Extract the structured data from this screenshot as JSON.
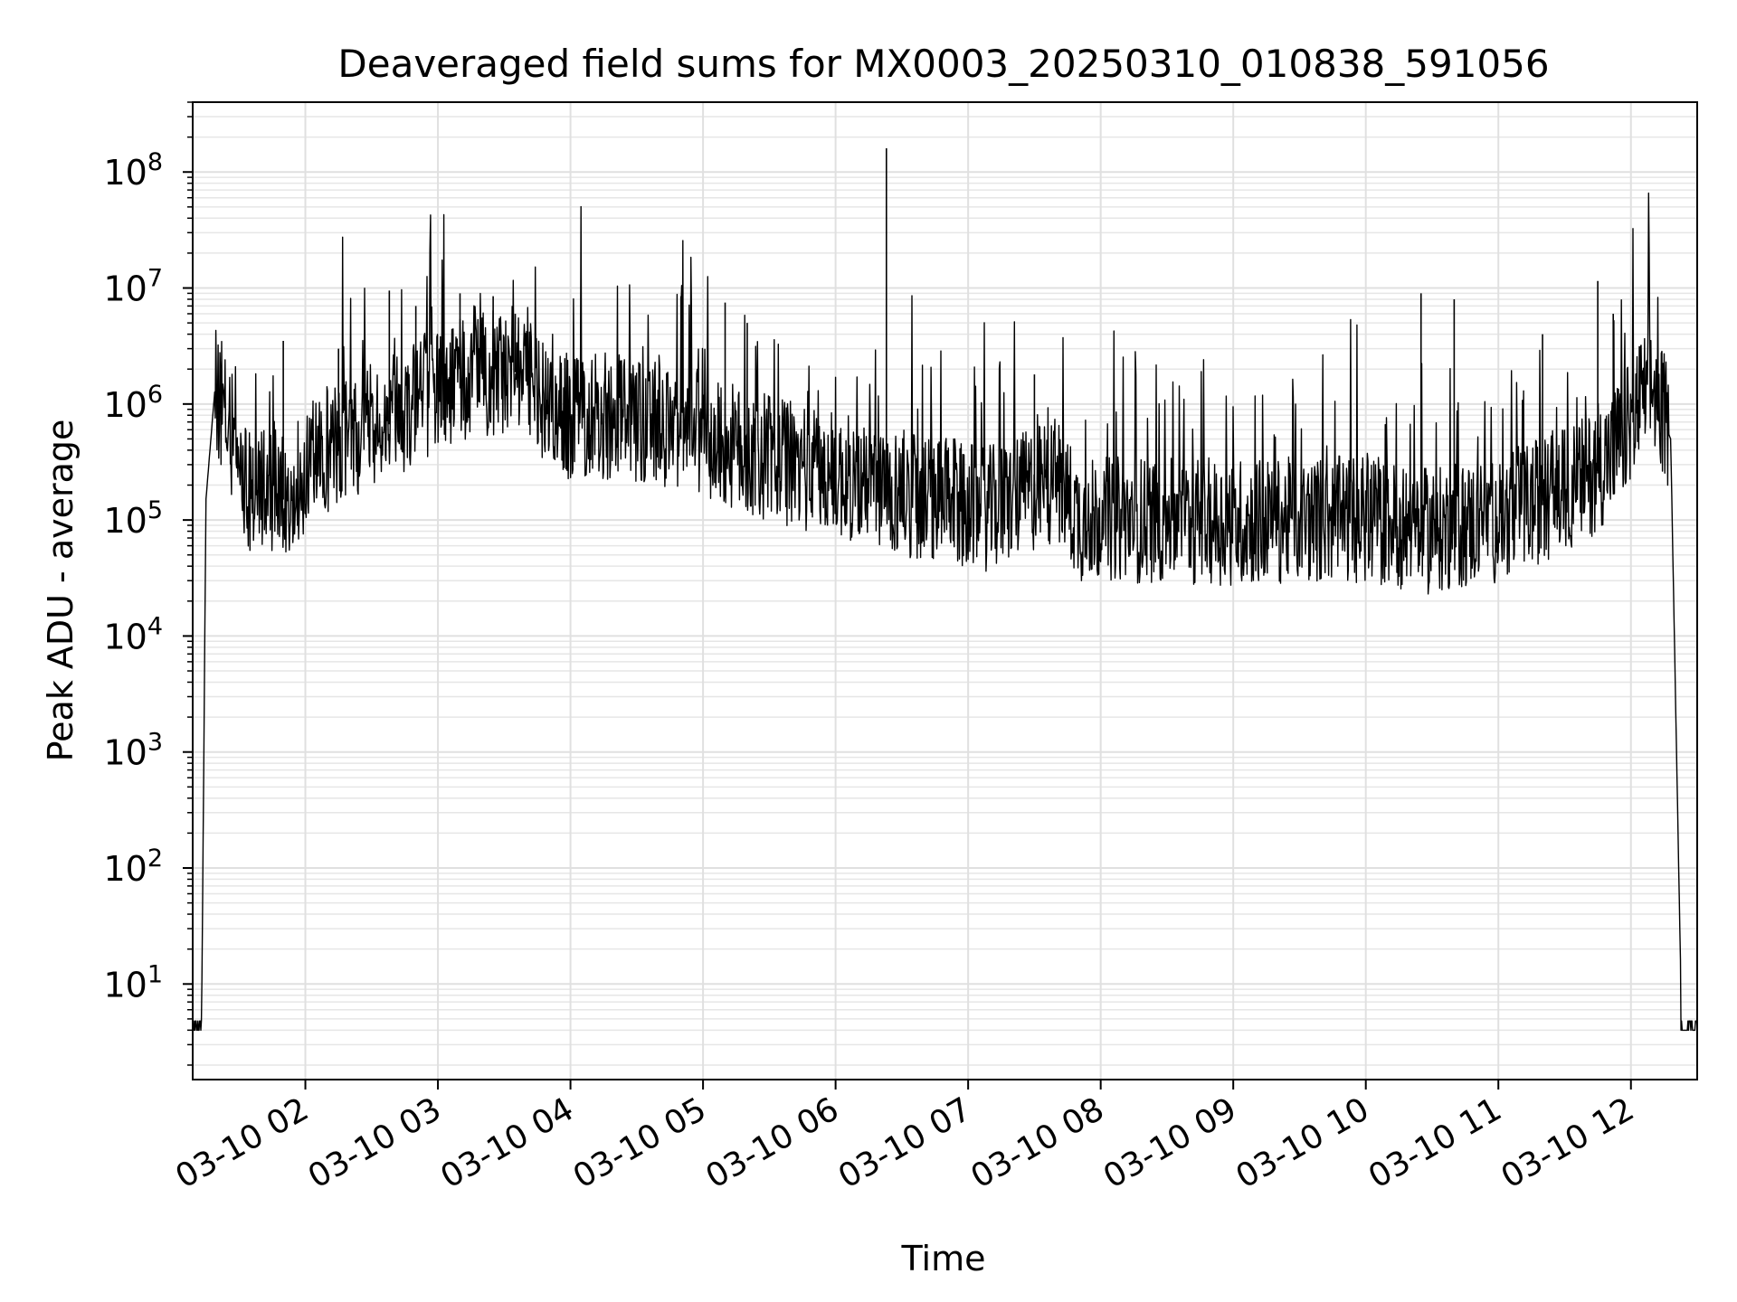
{
  "chart_data": {
    "type": "line",
    "title": "Deaveraged field sums for MX0003_20250310_010838_591056",
    "xlabel": "Time",
    "ylabel": "Peak ADU - average",
    "y_scale": "log",
    "ylim": [
      1.5,
      400000000
    ],
    "xlim": [
      "2025-03-10 01:09",
      "2025-03-10 12:30"
    ],
    "grid": true,
    "legend": "none",
    "line_color": "#000000",
    "x_ticks": [
      "03-10 02",
      "03-10 03",
      "03-10 04",
      "03-10 05",
      "03-10 06",
      "03-10 07",
      "03-10 08",
      "03-10 09",
      "03-10 10",
      "03-10 11",
      "03-10 12"
    ],
    "y_ticks": [
      {
        "base": "10",
        "exp": "1"
      },
      {
        "base": "10",
        "exp": "2"
      },
      {
        "base": "10",
        "exp": "3"
      },
      {
        "base": "10",
        "exp": "4"
      },
      {
        "base": "10",
        "exp": "5"
      },
      {
        "base": "10",
        "exp": "6"
      },
      {
        "base": "10",
        "exp": "7"
      },
      {
        "base": "10",
        "exp": "8"
      }
    ],
    "series": [
      {
        "baseline": [
          [
            "2025-03-10 01:09",
            4
          ],
          [
            "2025-03-10 01:13",
            4
          ],
          [
            "2025-03-10 01:15",
            150000
          ],
          [
            "2025-03-10 01:19",
            1300000
          ],
          [
            "2025-03-10 01:25",
            600000
          ],
          [
            "2025-03-10 01:35",
            150000
          ],
          [
            "2025-03-10 01:50",
            150000
          ],
          [
            "2025-03-10 02:10",
            350000
          ],
          [
            "2025-03-10 02:40",
            700000
          ],
          [
            "2025-03-10 03:00",
            1200000
          ],
          [
            "2025-03-10 03:40",
            2000000
          ],
          [
            "2025-03-10 03:50",
            700000
          ],
          [
            "2025-03-10 04:20",
            700000
          ],
          [
            "2025-03-10 04:50",
            500000
          ],
          [
            "2025-03-10 05:30",
            300000
          ],
          [
            "2025-03-10 06:30",
            150000
          ],
          [
            "2025-03-10 07:10",
            110000
          ],
          [
            "2025-03-10 07:40",
            200000
          ],
          [
            "2025-03-10 07:50",
            90000
          ],
          [
            "2025-03-10 09:00",
            85000
          ],
          [
            "2025-03-10 10:00",
            90000
          ],
          [
            "2025-03-10 10:30",
            70000
          ],
          [
            "2025-03-10 11:00",
            90000
          ],
          [
            "2025-03-10 11:40",
            200000
          ],
          [
            "2025-03-10 11:55",
            400000
          ],
          [
            "2025-03-10 12:05",
            1000000
          ],
          [
            "2025-03-10 12:10",
            1200000
          ],
          [
            "2025-03-10 12:18",
            500000
          ],
          [
            "2025-03-10 12:23",
            4
          ],
          [
            "2025-03-10 12:30",
            4
          ]
        ],
        "spikes": [
          [
            "2025-03-10 01:50",
            3500000
          ],
          [
            "2025-03-10 02:15",
            3000000
          ],
          [
            "2025-03-10 02:38",
            9500000
          ],
          [
            "2025-03-10 02:50",
            7000000
          ],
          [
            "2025-03-10 03:10",
            9000000
          ],
          [
            "2025-03-10 03:25",
            8500000
          ],
          [
            "2025-03-10 03:35",
            6000000
          ],
          [
            "2025-03-10 04:50",
            8500000
          ],
          [
            "2025-03-10 05:10",
            7500000
          ],
          [
            "2025-03-10 05:20",
            5000000
          ],
          [
            "2025-03-10 06:23",
            160000000
          ],
          [
            "2025-03-10 07:30",
            1800000
          ],
          [
            "2025-03-10 10:25",
            9000000
          ],
          [
            "2025-03-10 10:40",
            8000000
          ],
          [
            "2025-03-10 11:20",
            4000000
          ],
          [
            "2025-03-10 11:45",
            11500000
          ],
          [
            "2025-03-10 11:52",
            6000000
          ],
          [
            "2025-03-10 12:01",
            4000000
          ]
        ]
      }
    ]
  }
}
